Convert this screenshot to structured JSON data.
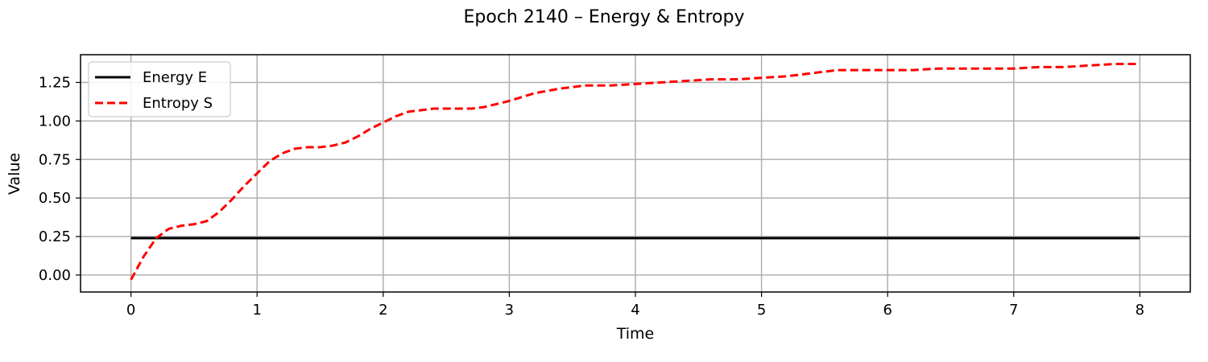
{
  "chart_data": {
    "type": "line",
    "title": "Epoch 2140 – Energy & Entropy",
    "xlabel": "Time",
    "ylabel": "Value",
    "xlim": [
      -0.4,
      8.4
    ],
    "ylim": [
      -0.11,
      1.43
    ],
    "xticks": [
      0,
      1,
      2,
      3,
      4,
      5,
      6,
      7,
      8
    ],
    "xtick_labels": [
      "0",
      "1",
      "2",
      "3",
      "4",
      "5",
      "6",
      "7",
      "8"
    ],
    "yticks": [
      0.0,
      0.25,
      0.5,
      0.75,
      1.0,
      1.25
    ],
    "ytick_labels": [
      "0.00",
      "0.25",
      "0.50",
      "0.75",
      "1.00",
      "1.25"
    ],
    "grid": true,
    "legend_position": "top-left",
    "series": [
      {
        "name": "Energy E",
        "color": "#000000",
        "style": "solid",
        "x": [
          0,
          8
        ],
        "y": [
          0.24,
          0.24
        ]
      },
      {
        "name": "Entropy S",
        "color": "#ff0000",
        "style": "dashed",
        "x": [
          0,
          0.1,
          0.2,
          0.3,
          0.4,
          0.5,
          0.6,
          0.7,
          0.8,
          0.9,
          1.0,
          1.1,
          1.2,
          1.3,
          1.4,
          1.5,
          1.6,
          1.7,
          1.8,
          1.9,
          2.0,
          2.1,
          2.2,
          2.3,
          2.4,
          2.5,
          2.6,
          2.7,
          2.8,
          2.9,
          3.0,
          3.2,
          3.4,
          3.6,
          3.8,
          4.0,
          4.2,
          4.4,
          4.6,
          4.8,
          5.0,
          5.2,
          5.4,
          5.6,
          5.8,
          6.0,
          6.2,
          6.4,
          6.6,
          6.8,
          7.0,
          7.2,
          7.4,
          7.6,
          7.8,
          8.0
        ],
        "y": [
          -0.03,
          0.12,
          0.24,
          0.3,
          0.32,
          0.33,
          0.35,
          0.41,
          0.49,
          0.58,
          0.66,
          0.74,
          0.79,
          0.82,
          0.83,
          0.83,
          0.84,
          0.86,
          0.9,
          0.95,
          0.99,
          1.03,
          1.06,
          1.07,
          1.08,
          1.08,
          1.08,
          1.08,
          1.09,
          1.11,
          1.13,
          1.18,
          1.21,
          1.23,
          1.23,
          1.24,
          1.25,
          1.26,
          1.27,
          1.27,
          1.28,
          1.29,
          1.31,
          1.33,
          1.33,
          1.33,
          1.33,
          1.34,
          1.34,
          1.34,
          1.34,
          1.35,
          1.35,
          1.36,
          1.37,
          1.37
        ]
      }
    ]
  }
}
